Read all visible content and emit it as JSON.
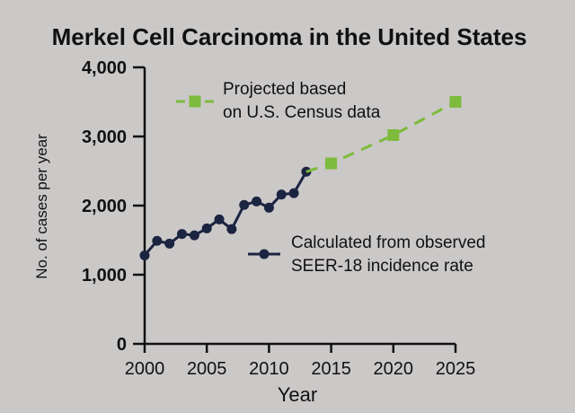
{
  "chart_data": {
    "type": "line",
    "title": "Merkel Cell Carcinoma in the United States",
    "xlabel": "Year",
    "ylabel": "No. of cases per year",
    "xlim": [
      2000,
      2025
    ],
    "ylim": [
      0,
      4000
    ],
    "x_ticks": [
      "2000",
      "2005",
      "2010",
      "2015",
      "2020",
      "2025"
    ],
    "y_ticks": [
      "0",
      "1,000",
      "2,000",
      "3,000",
      "4,000"
    ],
    "x_tick_values": [
      2000,
      2005,
      2010,
      2015,
      2020,
      2025
    ],
    "y_tick_values": [
      0,
      1000,
      2000,
      3000,
      4000
    ],
    "grid": false,
    "series": [
      {
        "name": "Calculated from observed SEER-18 incidence rate",
        "legend_lines": [
          "Calculated from observed",
          "SEER-18 incidence rate"
        ],
        "color": "#1b2440",
        "line_style": "solid",
        "marker": "circle",
        "x": [
          2000,
          2001,
          2002,
          2003,
          2004,
          2005,
          2006,
          2007,
          2008,
          2009,
          2010,
          2011,
          2012,
          2013
        ],
        "y": [
          1280,
          1490,
          1450,
          1590,
          1570,
          1670,
          1800,
          1660,
          2010,
          2060,
          1970,
          2160,
          2180,
          2490
        ]
      },
      {
        "name": "Projected based on U.S. Census data",
        "legend_lines": [
          "Projected based",
          "on U.S. Census data"
        ],
        "color": "#7dbb3c",
        "line_style": "dashed",
        "marker": "square",
        "x": [
          2013,
          2015,
          2020,
          2025
        ],
        "y": [
          2490,
          2610,
          3020,
          3500
        ]
      }
    ]
  }
}
